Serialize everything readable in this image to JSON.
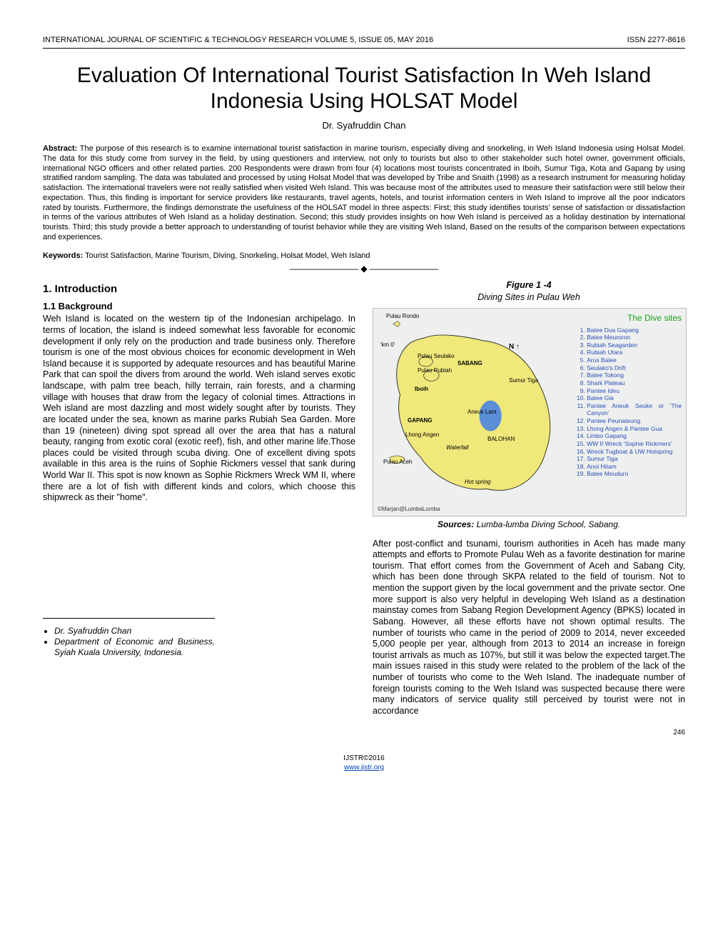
{
  "header": {
    "journal": "INTERNATIONAL JOURNAL OF SCIENTIFIC & TECHNOLOGY RESEARCH VOLUME 5, ISSUE 05, MAY 2016",
    "issn": "ISSN 2277-8616"
  },
  "title": "Evaluation Of International Tourist Satisfaction In Weh Island Indonesia Using HOLSAT Model",
  "author": "Dr. Syafruddin Chan",
  "abstract_label": "Abstract:",
  "abstract": "The purpose of this research is to examine international tourist satisfaction in marine tourism, especially diving and snorkeling, in Weh Island Indonesia using Holsat Model. The data for this study come from survey in the field, by using questioners and interview, not only to tourists but also to other stakeholder such hotel owner, government officials, international NGO officers and other related parties. 200 Respondents were drawn from four (4) locations most tourists concentrated in Iboih, Sumur Tiga, Kota and Gapang by using stratified random sampling. The data was tabulated and processed by using Holsat Model that was developed by Tribe and Snaith (1998) as a research instrument for measuring holiday satisfaction. The international travelers were not really satisfied when visited Weh Island. This was because most of the attributes used to measure their satisfaction were still below their expectation.  Thus, this finding is important for service providers like restaurants, travel agents, hotels,  and tourist information centers in Weh Island to improve all the poor indicators rated by tourists. Furthermore, the findings demonstrate the usefulness of the HOLSAT model in three aspects: First; this study identifies tourists' sense of satisfaction or dissatisfaction in terms of the various attributes of Weh Island as a holiday destination. Second; this study provides insights on how Weh Island is perceived as a holiday destination by international tourists. Third; this study provide a better approach to understanding of tourist behavior while they are visiting Weh Island, Based on the results of the comparison between expectations and experiences.",
  "keywords_label": "Keywords:",
  "keywords": "Tourist Satisfaction, Marine Tourism, Diving, Snorkeling, Holsat Model, Weh Island",
  "divider": "————————————————————",
  "section1": "1. Introduction",
  "section1_1": "1.1 Background",
  "body_left": "Weh Island is located on the western tip of the Indonesian archipelago. In terms of location, the island is indeed somewhat less favorable for economic development if only rely on the production and trade business only. Therefore tourism is one of the most obvious choices for economic development in Weh Island because it is supported by adequate resources and has beautiful Marine Park that can spoil the divers from around the world. Weh island serves exotic landscape, with palm tree beach, hilly terrain, rain forests, and a charming village with houses that draw from the legacy of colonial times. Attractions in Weh island are most dazzling and most widely sought after by tourists. They are located under the sea, known as marine parks Rubiah Sea Garden. More than 19 (nineteen) diving spot spread all over the area that has a natural beauty, ranging from exotic coral (exotic reef), fish, and other marine life.Those places could be visited through scuba diving. One of excellent diving spots available in this area is the ruins of Sophie Rickmers vessel that sank during World War II. This spot is now known as Sophie Rickmers Wreck WM II, where there are a lot of fish with different kinds and colors, which choose this shipwreck as their \"home\".",
  "fig_title": "Figure 1 -4",
  "fig_sub": "Diving Sites in Pulau Weh",
  "map": {
    "dive_header": "The Dive sites",
    "landmass_fill": "#f0e87a",
    "landmass_stroke": "#333333",
    "water_fill": "#eef0ef",
    "lake_fill": "#5a8fd6",
    "credit": "©Marjan@LumbaLumba",
    "compass": "N ↑",
    "labels": {
      "rondo": "Pulau Rondo",
      "km0": "'km 0'",
      "seulako": "Pulau Seulako",
      "rubiah": "Pulau Rubiah",
      "sabang": "SABANG",
      "iboih": "Iboih",
      "sumur": "Sumur Tiga",
      "gapang": "GAPANG",
      "aneuk": "Aneuk Laot",
      "lhong": "Lhong Angen",
      "balohan": "BALOHAN",
      "waterfall": "Waterfall",
      "aceh": "Pulau Aceh",
      "hotspring": "Hot spring"
    },
    "sites": [
      "Batee Dua Gapang",
      "Batee Meuroron",
      "Rubiah Seagarden",
      "Rubiah Utara",
      "Arus Balee",
      "Seulako's Drift",
      "Batee Tokong",
      "Shark Plateau",
      "Pantee Ideu",
      "Batee Gla",
      "Pantee Aneuk Seuke or 'The Canyon'",
      "Pantee Peunateung",
      "Lhong Angen & Pantee Gua",
      "Limbo Gapang",
      "WW II Wreck 'Sophie Rickmers'",
      "Wreck Tugboat & UW Hotspring",
      "Sumur Tiga",
      "Anoi Hitam",
      "Batee Meuduro"
    ]
  },
  "sources_label": "Sources:",
  "sources": "Lumba-lumba Diving School, Sabang.",
  "body_right": "After post-conflict and tsunami, tourism authorities in Aceh has made many attempts and efforts to Promote Pulau Weh as a favorite destination for marine tourism. That effort comes from the Government of Aceh and Sabang City, which has been done through SKPA related to the field of tourism. Not to mention the support given by the local government and the private sector. One more support is also very helpful in developing Weh Island as a destination mainstay comes from Sabang Region Development Agency (BPKS) located in Sabang. However, all these efforts have not shown optimal results. The number of tourists who came in the period of 2009 to 2014, never exceeded 5,000 people per year, although from 2013 to 2014 an increase in foreign tourist arrivals as much as 107%, but still it was below the expected target.The main issues raised in this study were related to the problem of the lack of the number of tourists who come to the Weh Island. The inadequate number of foreign tourists coming to the Weh Island was suspected because there were many indicators of service quality still perceived by tourist were not in accordance",
  "affil": {
    "name": "Dr. Syafruddin Chan",
    "dept": "Department of Economic and Business, Syiah Kuala University, Indonesia."
  },
  "footer": {
    "copyright": "IJSTR©2016",
    "url": "www.ijstr.org",
    "page": "246"
  }
}
